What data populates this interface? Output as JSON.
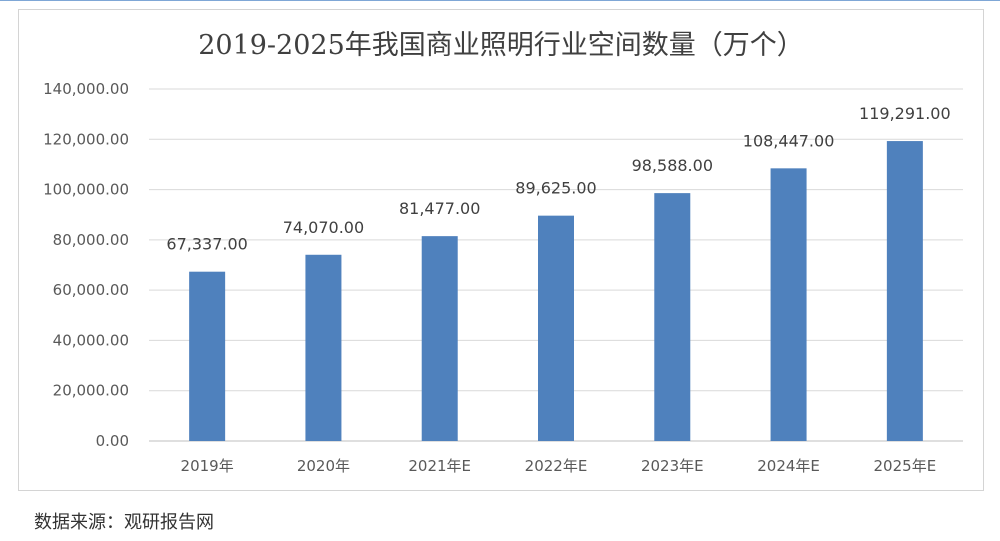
{
  "chart_data": {
    "type": "bar",
    "title": "2019-2025年我国商业照明行业空间数量（万个）",
    "categories": [
      "2019年",
      "2020年",
      "2021年E",
      "2022年E",
      "2023年E",
      "2024年E",
      "2025年E"
    ],
    "values": [
      67337,
      74070,
      81477,
      89625,
      98588,
      108447,
      119291
    ],
    "data_labels": [
      "67,337.00",
      "74,070.00",
      "81,477.00",
      "89,625.00",
      "98,588.00",
      "108,447.00",
      "119,291.00"
    ],
    "y_ticks": [
      "0.00",
      "20,000.00",
      "40,000.00",
      "60,000.00",
      "80,000.00",
      "100,000.00",
      "120,000.00",
      "140,000.00"
    ],
    "ylim": [
      0,
      140000
    ],
    "grid": true,
    "legend": "none",
    "bar_color": "#4f81bd",
    "grid_color": "#d9d9d9"
  },
  "source": "数据来源：观研报告网"
}
